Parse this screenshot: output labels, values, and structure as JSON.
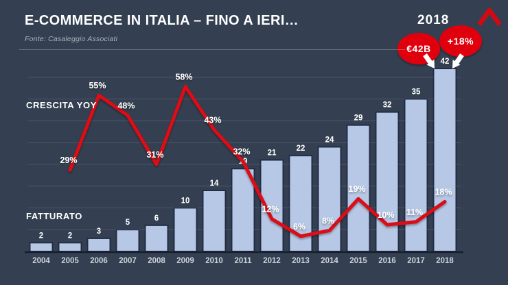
{
  "header": {
    "title": "E-COMMERCE IN ITALIA – FINO A IERI…",
    "source": "Fonte: Casaleggio Associati"
  },
  "branding": {
    "logo": "red-caret-logo",
    "logo_color": "#d10915"
  },
  "labels": {
    "growth_series": "CRESCITA YOY",
    "revenue_series": "FATTURATO"
  },
  "callouts": {
    "year": "2018",
    "revenue_badge": "€42B",
    "growth_badge": "+18%",
    "badge_color": "#e00511"
  },
  "colors": {
    "background": "#344051",
    "bar_fill": "#b7c8e6",
    "bar_edge": "#222d45",
    "line": "#dc0712",
    "text_primary": "#ffffff",
    "axis_text": "#cdd2da"
  },
  "chart_data": {
    "type": "bar",
    "subtype": "bar+line combo",
    "title": "E-COMMERCE IN ITALIA – FINO A IERI…",
    "categories": [
      "2004",
      "2005",
      "2006",
      "2007",
      "2008",
      "2009",
      "2010",
      "2011",
      "2012",
      "2013",
      "2014",
      "2015",
      "2016",
      "2017",
      "2018"
    ],
    "series": [
      {
        "name": "FATTURATO",
        "type": "bar",
        "unit": "€ billion",
        "values": [
          2,
          2,
          3,
          5,
          6,
          10,
          14,
          19,
          21,
          22,
          24,
          29,
          32,
          35,
          42
        ]
      },
      {
        "name": "CRESCITA YOY",
        "type": "line",
        "unit": "%",
        "values": [
          null,
          29,
          55,
          48,
          31,
          58,
          43,
          32,
          12,
          6,
          8,
          19,
          10,
          11,
          18
        ]
      }
    ],
    "xlabel": "",
    "ylabel": "",
    "ylim_bar": [
      0,
      45
    ],
    "grid": "horizontal, step 5 (billions), faint",
    "legend_position": "in-plot text labels at left",
    "annotations": [
      "2018",
      "€42B",
      "+18%"
    ]
  }
}
